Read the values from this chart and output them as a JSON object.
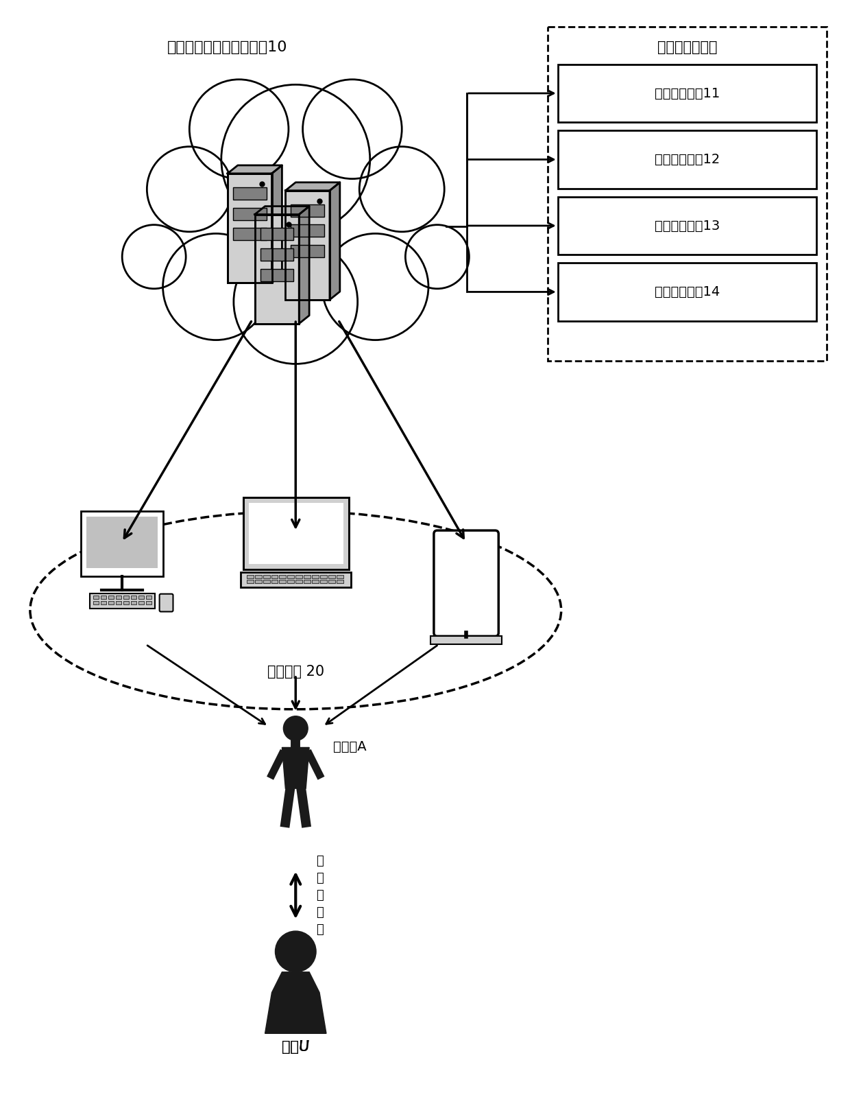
{
  "bg_color": "#ffffff",
  "cloud_label": "云端大脑（云端服务器）10",
  "vp_ability_label": "虚拟人能力接口",
  "boxes": [
    {
      "label": "语义理解接口11"
    },
    {
      "label": "视觉识别接口12"
    },
    {
      "label": "认知计算接口13"
    },
    {
      "label": "情感计算接古14"
    }
  ],
  "device_label": "智能设备 20",
  "virtual_person_label": "虚拟人A",
  "interaction_label": "多\n模\n态\n交\n互",
  "user_label": "用户U",
  "text_color": "#000000"
}
